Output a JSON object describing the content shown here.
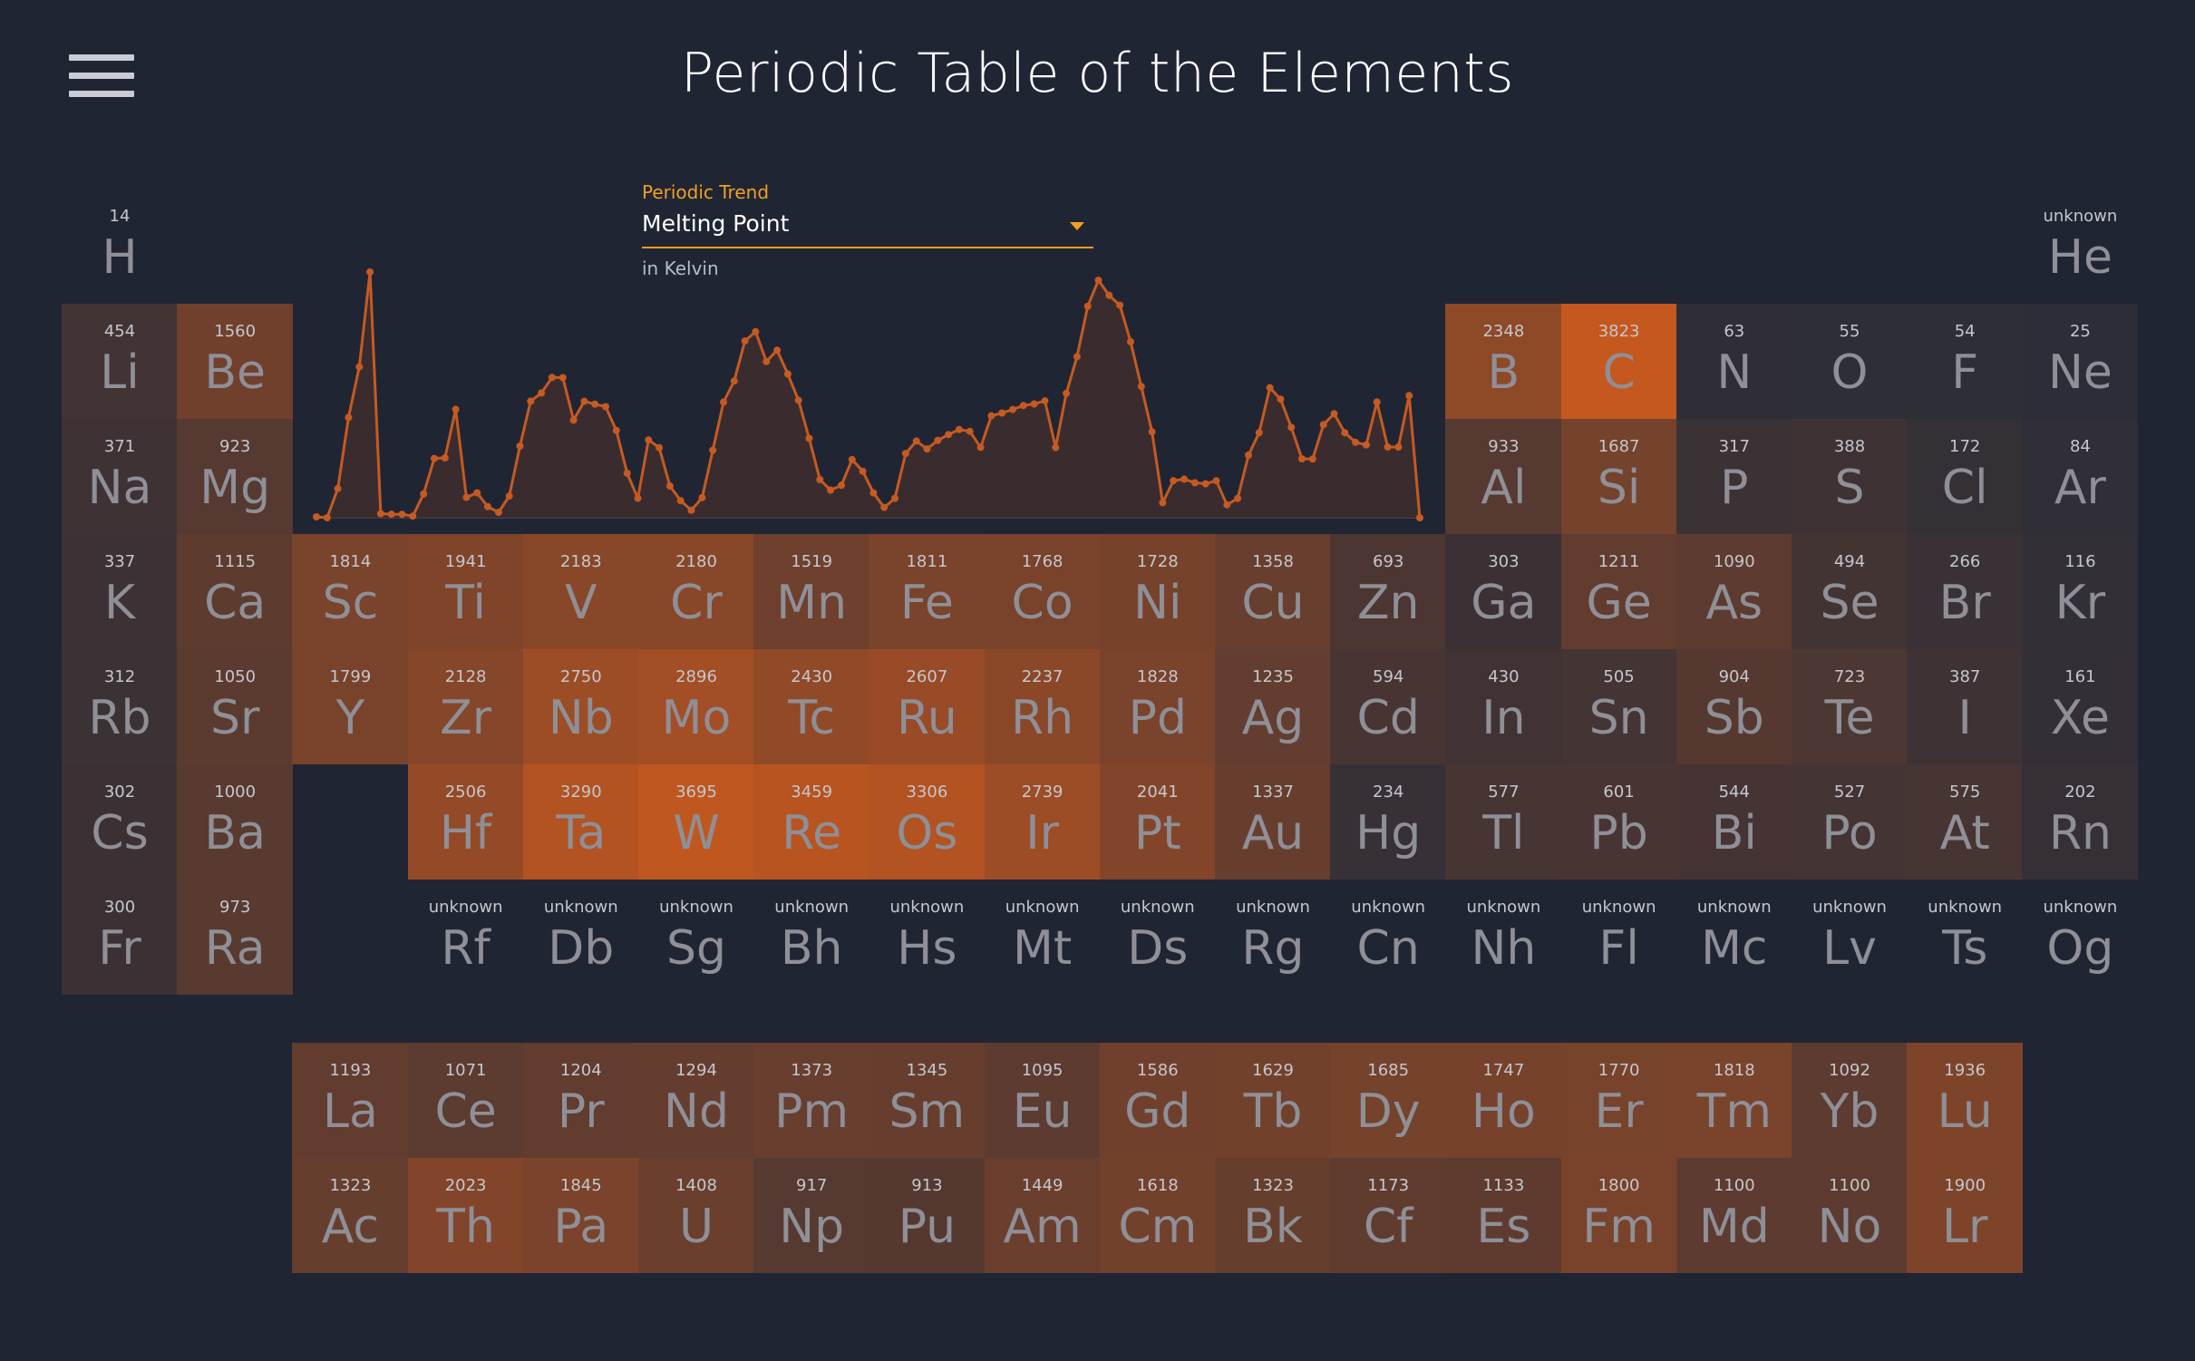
{
  "app": {
    "title": "Periodic Table of the Elements"
  },
  "trend": {
    "label": "Periodic Trend",
    "selected": "Melting Point",
    "unit": "in Kelvin"
  },
  "colors": {
    "background": "#202534",
    "accent": "#f0a020",
    "chart_line": "#c55a22"
  },
  "icons": {
    "menu": "hamburger-menu-icon"
  },
  "elements": [
    {
      "symbol": "H",
      "value": "14",
      "row": 1,
      "col": 1
    },
    {
      "symbol": "He",
      "value": "unknown",
      "row": 1,
      "col": 18
    },
    {
      "symbol": "Li",
      "value": "454",
      "row": 2,
      "col": 1
    },
    {
      "symbol": "Be",
      "value": "1560",
      "row": 2,
      "col": 2
    },
    {
      "symbol": "B",
      "value": "2348",
      "row": 2,
      "col": 13
    },
    {
      "symbol": "C",
      "value": "3823",
      "row": 2,
      "col": 14
    },
    {
      "symbol": "N",
      "value": "63",
      "row": 2,
      "col": 15
    },
    {
      "symbol": "O",
      "value": "55",
      "row": 2,
      "col": 16
    },
    {
      "symbol": "F",
      "value": "54",
      "row": 2,
      "col": 17
    },
    {
      "symbol": "Ne",
      "value": "25",
      "row": 2,
      "col": 18
    },
    {
      "symbol": "Na",
      "value": "371",
      "row": 3,
      "col": 1
    },
    {
      "symbol": "Mg",
      "value": "923",
      "row": 3,
      "col": 2
    },
    {
      "symbol": "Al",
      "value": "933",
      "row": 3,
      "col": 13
    },
    {
      "symbol": "Si",
      "value": "1687",
      "row": 3,
      "col": 14
    },
    {
      "symbol": "P",
      "value": "317",
      "row": 3,
      "col": 15
    },
    {
      "symbol": "S",
      "value": "388",
      "row": 3,
      "col": 16
    },
    {
      "symbol": "Cl",
      "value": "172",
      "row": 3,
      "col": 17
    },
    {
      "symbol": "Ar",
      "value": "84",
      "row": 3,
      "col": 18
    },
    {
      "symbol": "K",
      "value": "337",
      "row": 4,
      "col": 1
    },
    {
      "symbol": "Ca",
      "value": "1115",
      "row": 4,
      "col": 2
    },
    {
      "symbol": "Sc",
      "value": "1814",
      "row": 4,
      "col": 3
    },
    {
      "symbol": "Ti",
      "value": "1941",
      "row": 4,
      "col": 4
    },
    {
      "symbol": "V",
      "value": "2183",
      "row": 4,
      "col": 5
    },
    {
      "symbol": "Cr",
      "value": "2180",
      "row": 4,
      "col": 6
    },
    {
      "symbol": "Mn",
      "value": "1519",
      "row": 4,
      "col": 7
    },
    {
      "symbol": "Fe",
      "value": "1811",
      "row": 4,
      "col": 8
    },
    {
      "symbol": "Co",
      "value": "1768",
      "row": 4,
      "col": 9
    },
    {
      "symbol": "Ni",
      "value": "1728",
      "row": 4,
      "col": 10
    },
    {
      "symbol": "Cu",
      "value": "1358",
      "row": 4,
      "col": 11
    },
    {
      "symbol": "Zn",
      "value": "693",
      "row": 4,
      "col": 12
    },
    {
      "symbol": "Ga",
      "value": "303",
      "row": 4,
      "col": 13
    },
    {
      "symbol": "Ge",
      "value": "1211",
      "row": 4,
      "col": 14
    },
    {
      "symbol": "As",
      "value": "1090",
      "row": 4,
      "col": 15
    },
    {
      "symbol": "Se",
      "value": "494",
      "row": 4,
      "col": 16
    },
    {
      "symbol": "Br",
      "value": "266",
      "row": 4,
      "col": 17
    },
    {
      "symbol": "Kr",
      "value": "116",
      "row": 4,
      "col": 18
    },
    {
      "symbol": "Rb",
      "value": "312",
      "row": 5,
      "col": 1
    },
    {
      "symbol": "Sr",
      "value": "1050",
      "row": 5,
      "col": 2
    },
    {
      "symbol": "Y",
      "value": "1799",
      "row": 5,
      "col": 3
    },
    {
      "symbol": "Zr",
      "value": "2128",
      "row": 5,
      "col": 4
    },
    {
      "symbol": "Nb",
      "value": "2750",
      "row": 5,
      "col": 5
    },
    {
      "symbol": "Mo",
      "value": "2896",
      "row": 5,
      "col": 6
    },
    {
      "symbol": "Tc",
      "value": "2430",
      "row": 5,
      "col": 7
    },
    {
      "symbol": "Ru",
      "value": "2607",
      "row": 5,
      "col": 8
    },
    {
      "symbol": "Rh",
      "value": "2237",
      "row": 5,
      "col": 9
    },
    {
      "symbol": "Pd",
      "value": "1828",
      "row": 5,
      "col": 10
    },
    {
      "symbol": "Ag",
      "value": "1235",
      "row": 5,
      "col": 11
    },
    {
      "symbol": "Cd",
      "value": "594",
      "row": 5,
      "col": 12
    },
    {
      "symbol": "In",
      "value": "430",
      "row": 5,
      "col": 13
    },
    {
      "symbol": "Sn",
      "value": "505",
      "row": 5,
      "col": 14
    },
    {
      "symbol": "Sb",
      "value": "904",
      "row": 5,
      "col": 15
    },
    {
      "symbol": "Te",
      "value": "723",
      "row": 5,
      "col": 16
    },
    {
      "symbol": "I",
      "value": "387",
      "row": 5,
      "col": 17
    },
    {
      "symbol": "Xe",
      "value": "161",
      "row": 5,
      "col": 18
    },
    {
      "symbol": "Cs",
      "value": "302",
      "row": 6,
      "col": 1
    },
    {
      "symbol": "Ba",
      "value": "1000",
      "row": 6,
      "col": 2
    },
    {
      "symbol": "Hf",
      "value": "2506",
      "row": 6,
      "col": 4
    },
    {
      "symbol": "Ta",
      "value": "3290",
      "row": 6,
      "col": 5
    },
    {
      "symbol": "W",
      "value": "3695",
      "row": 6,
      "col": 6
    },
    {
      "symbol": "Re",
      "value": "3459",
      "row": 6,
      "col": 7
    },
    {
      "symbol": "Os",
      "value": "3306",
      "row": 6,
      "col": 8
    },
    {
      "symbol": "Ir",
      "value": "2739",
      "row": 6,
      "col": 9
    },
    {
      "symbol": "Pt",
      "value": "2041",
      "row": 6,
      "col": 10
    },
    {
      "symbol": "Au",
      "value": "1337",
      "row": 6,
      "col": 11
    },
    {
      "symbol": "Hg",
      "value": "234",
      "row": 6,
      "col": 12
    },
    {
      "symbol": "Tl",
      "value": "577",
      "row": 6,
      "col": 13
    },
    {
      "symbol": "Pb",
      "value": "601",
      "row": 6,
      "col": 14
    },
    {
      "symbol": "Bi",
      "value": "544",
      "row": 6,
      "col": 15
    },
    {
      "symbol": "Po",
      "value": "527",
      "row": 6,
      "col": 16
    },
    {
      "symbol": "At",
      "value": "575",
      "row": 6,
      "col": 17
    },
    {
      "symbol": "Rn",
      "value": "202",
      "row": 6,
      "col": 18
    },
    {
      "symbol": "Fr",
      "value": "300",
      "row": 7,
      "col": 1
    },
    {
      "symbol": "Ra",
      "value": "973",
      "row": 7,
      "col": 2
    },
    {
      "symbol": "Rf",
      "value": "unknown",
      "row": 7,
      "col": 4
    },
    {
      "symbol": "Db",
      "value": "unknown",
      "row": 7,
      "col": 5
    },
    {
      "symbol": "Sg",
      "value": "unknown",
      "row": 7,
      "col": 6
    },
    {
      "symbol": "Bh",
      "value": "unknown",
      "row": 7,
      "col": 7
    },
    {
      "symbol": "Hs",
      "value": "unknown",
      "row": 7,
      "col": 8
    },
    {
      "symbol": "Mt",
      "value": "unknown",
      "row": 7,
      "col": 9
    },
    {
      "symbol": "Ds",
      "value": "unknown",
      "row": 7,
      "col": 10
    },
    {
      "symbol": "Rg",
      "value": "unknown",
      "row": 7,
      "col": 11
    },
    {
      "symbol": "Cn",
      "value": "unknown",
      "row": 7,
      "col": 12
    },
    {
      "symbol": "Nh",
      "value": "unknown",
      "row": 7,
      "col": 13
    },
    {
      "symbol": "Fl",
      "value": "unknown",
      "row": 7,
      "col": 14
    },
    {
      "symbol": "Mc",
      "value": "unknown",
      "row": 7,
      "col": 15
    },
    {
      "symbol": "Lv",
      "value": "unknown",
      "row": 7,
      "col": 16
    },
    {
      "symbol": "Ts",
      "value": "unknown",
      "row": 7,
      "col": 17
    },
    {
      "symbol": "Og",
      "value": "unknown",
      "row": 7,
      "col": 18
    },
    {
      "symbol": "La",
      "value": "1193",
      "row": 9,
      "col": 3
    },
    {
      "symbol": "Ce",
      "value": "1071",
      "row": 9,
      "col": 4
    },
    {
      "symbol": "Pr",
      "value": "1204",
      "row": 9,
      "col": 5
    },
    {
      "symbol": "Nd",
      "value": "1294",
      "row": 9,
      "col": 6
    },
    {
      "symbol": "Pm",
      "value": "1373",
      "row": 9,
      "col": 7
    },
    {
      "symbol": "Sm",
      "value": "1345",
      "row": 9,
      "col": 8
    },
    {
      "symbol": "Eu",
      "value": "1095",
      "row": 9,
      "col": 9
    },
    {
      "symbol": "Gd",
      "value": "1586",
      "row": 9,
      "col": 10
    },
    {
      "symbol": "Tb",
      "value": "1629",
      "row": 9,
      "col": 11
    },
    {
      "symbol": "Dy",
      "value": "1685",
      "row": 9,
      "col": 12
    },
    {
      "symbol": "Ho",
      "value": "1747",
      "row": 9,
      "col": 13
    },
    {
      "symbol": "Er",
      "value": "1770",
      "row": 9,
      "col": 14
    },
    {
      "symbol": "Tm",
      "value": "1818",
      "row": 9,
      "col": 15
    },
    {
      "symbol": "Yb",
      "value": "1092",
      "row": 9,
      "col": 16
    },
    {
      "symbol": "Lu",
      "value": "1936",
      "row": 9,
      "col": 17
    },
    {
      "symbol": "Ac",
      "value": "1323",
      "row": 10,
      "col": 3
    },
    {
      "symbol": "Th",
      "value": "2023",
      "row": 10,
      "col": 4
    },
    {
      "symbol": "Pa",
      "value": "1845",
      "row": 10,
      "col": 5
    },
    {
      "symbol": "U",
      "value": "1408",
      "row": 10,
      "col": 6
    },
    {
      "symbol": "Np",
      "value": "917",
      "row": 10,
      "col": 7
    },
    {
      "symbol": "Pu",
      "value": "913",
      "row": 10,
      "col": 8
    },
    {
      "symbol": "Am",
      "value": "1449",
      "row": 10,
      "col": 9
    },
    {
      "symbol": "Cm",
      "value": "1618",
      "row": 10,
      "col": 10
    },
    {
      "symbol": "Bk",
      "value": "1323",
      "row": 10,
      "col": 11
    },
    {
      "symbol": "Cf",
      "value": "1173",
      "row": 10,
      "col": 12
    },
    {
      "symbol": "Es",
      "value": "1133",
      "row": 10,
      "col": 13
    },
    {
      "symbol": "Fm",
      "value": "1800",
      "row": 10,
      "col": 14
    },
    {
      "symbol": "Md",
      "value": "1100",
      "row": 10,
      "col": 15
    },
    {
      "symbol": "No",
      "value": "1100",
      "row": 10,
      "col": 16
    },
    {
      "symbol": "Lr",
      "value": "1900",
      "row": 10,
      "col": 17
    }
  ],
  "chart_data": {
    "type": "area",
    "xlabel": "",
    "ylabel": "",
    "ylim": [
      0,
      3823
    ],
    "values": [
      14,
      0,
      454,
      1560,
      2348,
      3823,
      63,
      55,
      54,
      25,
      371,
      923,
      933,
      1687,
      317,
      388,
      172,
      84,
      337,
      1115,
      1814,
      1941,
      2183,
      2180,
      1519,
      1811,
      1768,
      1728,
      1358,
      693,
      303,
      1211,
      1090,
      494,
      266,
      116,
      312,
      1050,
      1799,
      2128,
      2750,
      2896,
      2430,
      2607,
      2237,
      1828,
      1235,
      594,
      430,
      505,
      904,
      723,
      387,
      161,
      302,
      1000,
      1193,
      1071,
      1204,
      1294,
      1373,
      1345,
      1095,
      1586,
      1629,
      1685,
      1747,
      1770,
      1818,
      1092,
      1936,
      2506,
      3290,
      3695,
      3459,
      3306,
      2739,
      2041,
      1337,
      234,
      577,
      601,
      544,
      527,
      575,
      202,
      300,
      973,
      1323,
      2023,
      1845,
      1408,
      917,
      913,
      1449,
      1618,
      1323,
      1173,
      1133,
      1800,
      1100,
      1100,
      1900,
      0
    ]
  }
}
